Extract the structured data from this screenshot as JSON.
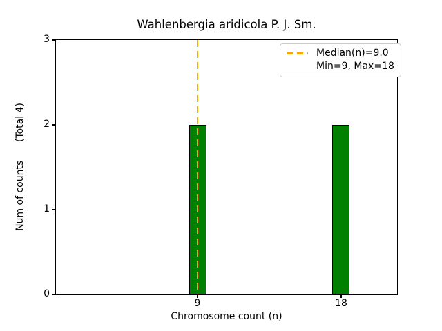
{
  "chart_data": {
    "type": "bar",
    "title": "Wahlenbergia aridicola P. J. Sm.",
    "xlabel": "Chromosome count (n)",
    "ylabel": "Num of counts      (Total 4)",
    "categories": [
      9,
      18
    ],
    "values": [
      2,
      2
    ],
    "total_counts": 4,
    "median": 9.0,
    "min": 9,
    "max": 18,
    "ylim": [
      0,
      3
    ],
    "yticks": [
      0,
      1,
      2,
      3
    ],
    "ytick_labels": [
      "0",
      "1",
      "2",
      "3"
    ],
    "xtick_labels": [
      "9",
      "18"
    ],
    "grid": false,
    "bar_color": "#008000",
    "bar_edge_color": "#000000",
    "median_line_color": "#FFA500",
    "axes_color": "#000000",
    "legend": {
      "position": "upper right",
      "border_color": "#cccccc",
      "entries": [
        "Median(n)=9.0",
        "Min=9, Max=18"
      ]
    }
  }
}
